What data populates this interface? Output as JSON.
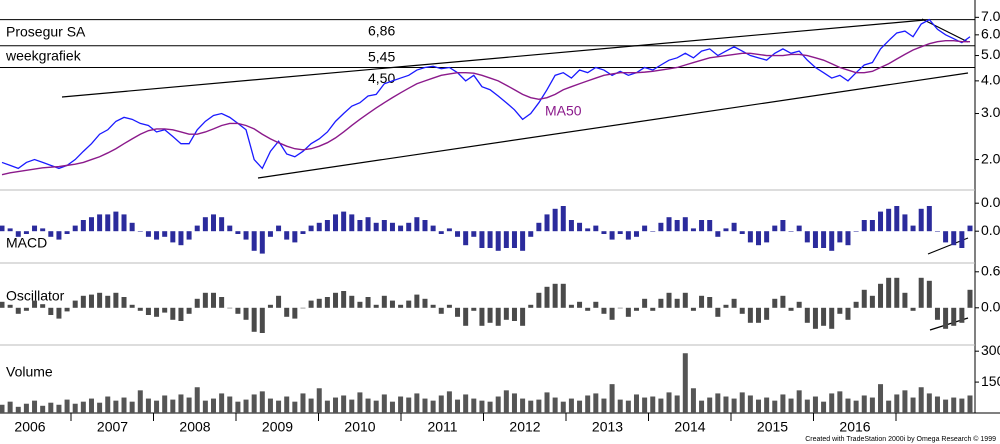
{
  "chart_data": [
    {
      "type": "line",
      "title": "Prosegur SA",
      "subtitle": "weekgrafiek",
      "log_scale": true,
      "ylim": [
        1.7,
        7.6
      ],
      "yticks": [
        {
          "value": 7,
          "label": "7.00"
        },
        {
          "value": 6,
          "label": "6.00"
        },
        {
          "value": 5,
          "label": "5.00"
        },
        {
          "value": 4,
          "label": "4.00"
        },
        {
          "value": 3,
          "label": "3.00"
        },
        {
          "value": 2,
          "label": "2.00"
        }
      ],
      "levels": [
        {
          "value": 6.86,
          "label": "6,86"
        },
        {
          "value": 5.45,
          "label": "5,45"
        },
        {
          "value": 4.5,
          "label": "4,50"
        }
      ],
      "series": [
        {
          "color": "#1a1aff",
          "values": [
            1.95,
            1.9,
            1.85,
            1.95,
            2.0,
            1.95,
            1.9,
            1.85,
            1.9,
            2.0,
            2.15,
            2.3,
            2.5,
            2.6,
            2.8,
            2.9,
            2.85,
            2.75,
            2.7,
            2.55,
            2.6,
            2.45,
            2.3,
            2.3,
            2.6,
            2.8,
            2.95,
            3.0,
            2.9,
            2.75,
            2.6,
            2.0,
            1.85,
            2.15,
            2.35,
            2.1,
            2.05,
            2.15,
            2.3,
            2.4,
            2.55,
            2.8,
            3.0,
            3.2,
            3.3,
            3.5,
            3.55,
            3.9,
            4.0,
            4.1,
            4.2,
            4.4,
            4.5,
            4.55,
            4.45,
            4.5,
            4.3,
            4.0,
            4.2,
            3.8,
            3.7,
            3.5,
            3.3,
            3.1,
            2.85,
            3.0,
            3.3,
            3.7,
            4.2,
            4.3,
            4.1,
            4.4,
            4.3,
            4.5,
            4.4,
            4.2,
            4.35,
            4.2,
            4.3,
            4.5,
            4.4,
            4.6,
            4.8,
            4.9,
            5.1,
            4.9,
            5.2,
            5.3,
            5.0,
            5.2,
            5.4,
            5.2,
            5.0,
            4.9,
            4.8,
            5.1,
            5.3,
            5.1,
            5.2,
            4.8,
            4.5,
            4.3,
            4.1,
            4.2,
            4.0,
            4.3,
            4.6,
            4.7,
            5.3,
            5.7,
            6.1,
            6.2,
            5.9,
            6.6,
            6.86,
            6.3,
            6.0,
            5.8,
            5.6,
            5.9
          ]
        },
        {
          "name": "MA50",
          "color": "#8b1a8b",
          "values": [
            1.75,
            1.78,
            1.8,
            1.82,
            1.84,
            1.86,
            1.87,
            1.88,
            1.9,
            1.92,
            1.95,
            2.0,
            2.05,
            2.12,
            2.2,
            2.3,
            2.4,
            2.5,
            2.58,
            2.62,
            2.62,
            2.6,
            2.55,
            2.5,
            2.5,
            2.55,
            2.62,
            2.7,
            2.75,
            2.75,
            2.7,
            2.62,
            2.5,
            2.4,
            2.32,
            2.25,
            2.2,
            2.18,
            2.2,
            2.25,
            2.32,
            2.42,
            2.55,
            2.7,
            2.85,
            3.0,
            3.15,
            3.3,
            3.45,
            3.6,
            3.75,
            3.9,
            4.0,
            4.1,
            4.2,
            4.25,
            4.3,
            4.3,
            4.28,
            4.2,
            4.1,
            4.0,
            3.85,
            3.7,
            3.55,
            3.45,
            3.4,
            3.45,
            3.55,
            3.7,
            3.8,
            3.9,
            4.0,
            4.1,
            4.2,
            4.25,
            4.3,
            4.3,
            4.3,
            4.32,
            4.35,
            4.4,
            4.45,
            4.5,
            4.6,
            4.7,
            4.8,
            4.9,
            4.95,
            5.0,
            5.05,
            5.1,
            5.1,
            5.05,
            5.0,
            5.0,
            5.0,
            5.05,
            5.05,
            5.0,
            4.9,
            4.8,
            4.65,
            4.5,
            4.4,
            4.3,
            4.3,
            4.35,
            4.5,
            4.65,
            4.85,
            5.05,
            5.25,
            5.4,
            5.55,
            5.65,
            5.7,
            5.7,
            5.65,
            5.65
          ]
        }
      ]
    },
    {
      "type": "bar",
      "title": "MACD",
      "color": "#2b2b9c",
      "ylim": [
        -0.055,
        0.07
      ],
      "yticks": [
        {
          "value": 0.05,
          "label": "0.0"
        },
        {
          "value": 0,
          "label": "0.0"
        }
      ],
      "values": [
        0.01,
        0.005,
        -0.01,
        -0.005,
        0.01,
        0.005,
        -0.01,
        -0.015,
        -0.005,
        0.01,
        0.02,
        0.025,
        0.03,
        0.03,
        0.035,
        0.03,
        0.015,
        0.0,
        -0.01,
        -0.015,
        -0.01,
        -0.02,
        -0.025,
        -0.015,
        0.01,
        0.025,
        0.03,
        0.025,
        0.01,
        -0.005,
        -0.015,
        -0.035,
        -0.04,
        -0.01,
        0.01,
        -0.015,
        -0.02,
        -0.005,
        0.01,
        0.015,
        0.02,
        0.03,
        0.035,
        0.03,
        0.02,
        0.025,
        0.015,
        0.02,
        0.015,
        0.01,
        0.015,
        0.025,
        0.02,
        0.01,
        -0.005,
        0.005,
        -0.01,
        -0.025,
        -0.01,
        -0.03,
        -0.03,
        -0.035,
        -0.03,
        -0.03,
        -0.035,
        -0.01,
        0.015,
        0.03,
        0.04,
        0.045,
        0.02,
        0.015,
        0.005,
        0.01,
        -0.005,
        -0.015,
        -0.005,
        -0.015,
        -0.01,
        0.01,
        0.0,
        0.015,
        0.025,
        0.02,
        0.025,
        0.005,
        0.02,
        0.02,
        -0.01,
        0.005,
        0.015,
        -0.005,
        -0.02,
        -0.025,
        -0.02,
        0.01,
        0.02,
        0.0,
        0.01,
        -0.02,
        -0.03,
        -0.03,
        -0.035,
        -0.02,
        -0.025,
        0.0,
        0.02,
        0.02,
        0.035,
        0.04,
        0.045,
        0.03,
        0.01,
        0.04,
        0.045,
        0.0,
        -0.02,
        -0.025,
        -0.03,
        0.01
      ]
    },
    {
      "type": "bar",
      "title": "Oscillator",
      "color": "#4a4a4a",
      "ylim": [
        -0.62,
        0.73
      ],
      "yticks": [
        {
          "value": 0.6,
          "label": "0.6"
        },
        {
          "value": 0,
          "label": "0.0"
        }
      ],
      "values": [
        0.1,
        0.05,
        -0.1,
        -0.05,
        0.12,
        0.06,
        -0.12,
        -0.18,
        -0.06,
        0.12,
        0.2,
        0.22,
        0.25,
        0.2,
        0.25,
        0.18,
        0.05,
        -0.05,
        -0.12,
        -0.15,
        -0.08,
        -0.2,
        -0.22,
        -0.1,
        0.15,
        0.25,
        0.25,
        0.18,
        0.0,
        -0.1,
        -0.2,
        -0.4,
        -0.42,
        0.05,
        0.2,
        -0.15,
        -0.18,
        0.0,
        0.12,
        0.15,
        0.18,
        0.25,
        0.28,
        0.2,
        0.1,
        0.18,
        0.05,
        0.2,
        0.12,
        0.05,
        0.12,
        0.22,
        0.15,
        0.05,
        -0.1,
        0.05,
        -0.15,
        -0.3,
        -0.05,
        -0.3,
        -0.25,
        -0.3,
        -0.2,
        -0.22,
        -0.3,
        0.05,
        0.25,
        0.35,
        0.4,
        0.4,
        0.05,
        0.1,
        -0.05,
        0.1,
        -0.1,
        -0.2,
        0.0,
        -0.15,
        -0.05,
        0.15,
        -0.05,
        0.15,
        0.25,
        0.15,
        0.25,
        -0.05,
        0.2,
        0.18,
        -0.15,
        0.05,
        0.15,
        -0.1,
        -0.25,
        -0.25,
        -0.2,
        0.15,
        0.2,
        -0.05,
        0.1,
        -0.25,
        -0.35,
        -0.3,
        -0.35,
        -0.1,
        -0.2,
        0.1,
        0.3,
        0.2,
        0.4,
        0.5,
        0.5,
        0.25,
        -0.05,
        0.5,
        0.45,
        -0.2,
        -0.35,
        -0.3,
        -0.25,
        0.3
      ]
    },
    {
      "type": "bar",
      "title": "Volume",
      "color": "#555555",
      "ylim": [
        0,
        330
      ],
      "yticks": [
        300,
        150
      ],
      "values": [
        40,
        55,
        30,
        45,
        60,
        35,
        50,
        40,
        65,
        45,
        55,
        70,
        50,
        80,
        60,
        75,
        55,
        110,
        70,
        60,
        85,
        65,
        90,
        75,
        125,
        60,
        70,
        95,
        80,
        55,
        65,
        90,
        105,
        70,
        60,
        80,
        55,
        95,
        70,
        120,
        60,
        75,
        85,
        65,
        100,
        70,
        60,
        90,
        55,
        80,
        75,
        95,
        70,
        60,
        85,
        105,
        65,
        90,
        70,
        60,
        55,
        80,
        110,
        95,
        70,
        60,
        65,
        100,
        75,
        55,
        70,
        60,
        85,
        95,
        70,
        140,
        65,
        60,
        90,
        75,
        80,
        70,
        100,
        85,
        290,
        120,
        60,
        75,
        95,
        80,
        70,
        100,
        85,
        65,
        75,
        60,
        90,
        70,
        110,
        65,
        80,
        55,
        95,
        105,
        70,
        60,
        85,
        75,
        140,
        60,
        90,
        110,
        75,
        125,
        95,
        80,
        65,
        75,
        70,
        85
      ]
    }
  ],
  "time_axis": [
    "2006",
    "2007",
    "2008",
    "2009",
    "2010",
    "2011",
    "2012",
    "2013",
    "2014",
    "2015",
    "2016"
  ],
  "footer": "Created with TradeStation 2000i by Omega Research © 1999"
}
